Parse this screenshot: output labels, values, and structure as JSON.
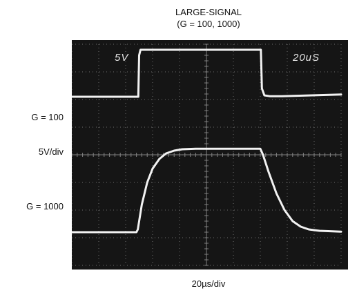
{
  "chart_data": {
    "type": "line",
    "title": "LARGE-SIGNAL",
    "subtitle": "(G = 100, 1000)",
    "xlabel": "20µs/div",
    "ylabel": "5V/div",
    "scope_readout": {
      "volts_per_div": "5V",
      "time_per_div": "20uS"
    },
    "x_units": "div",
    "y_units": "div",
    "xlim": [
      0,
      10
    ],
    "ylim": [
      0,
      8
    ],
    "grid": true,
    "colors": {
      "screen": "#151515",
      "grid": "#8c8c8c",
      "trace": "#f2f2f2",
      "readout": "#e6e6e6"
    },
    "series": [
      {
        "name": "G = 100",
        "x": [
          0,
          2.47,
          2.5,
          2.55,
          2.7,
          7.02,
          7.06,
          7.15,
          7.35,
          7.8,
          10
        ],
        "y": [
          6.1,
          6.1,
          7.6,
          7.8,
          7.8,
          7.8,
          6.4,
          6.15,
          6.12,
          6.12,
          6.18
        ]
      },
      {
        "name": "G = 1000",
        "x": [
          0,
          2.4,
          2.45,
          2.6,
          2.8,
          3.0,
          3.25,
          3.5,
          3.8,
          4.1,
          4.6,
          7.0,
          7.1,
          7.3,
          7.6,
          7.9,
          8.2,
          8.5,
          8.8,
          9.2,
          10
        ],
        "y": [
          1.2,
          1.2,
          1.3,
          2.2,
          3.0,
          3.5,
          3.85,
          4.05,
          4.15,
          4.2,
          4.22,
          4.22,
          4.0,
          3.4,
          2.6,
          2.0,
          1.6,
          1.4,
          1.3,
          1.25,
          1.22
        ]
      }
    ]
  }
}
